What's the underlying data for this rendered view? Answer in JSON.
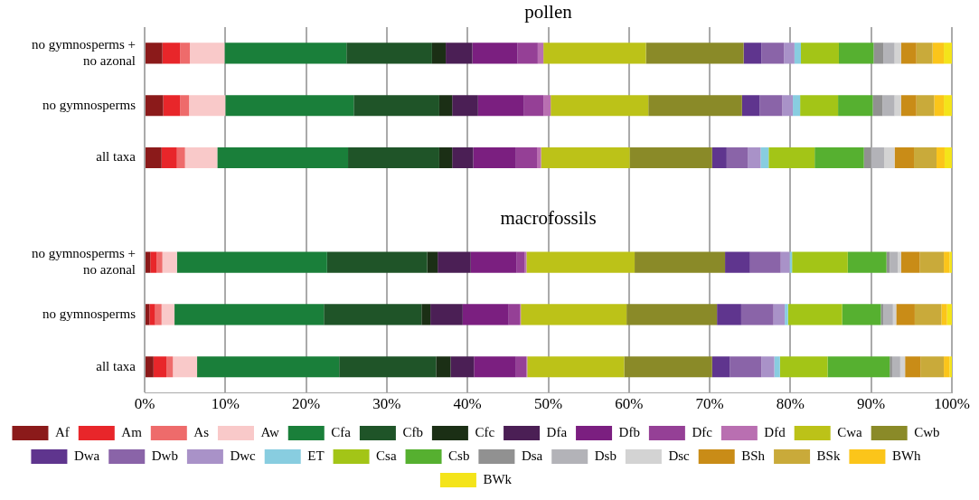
{
  "chart_data": {
    "type": "bar",
    "orientation": "horizontal",
    "stacked": true,
    "title": "pollen",
    "annotations": [
      "macrofossils"
    ],
    "categories": [
      "no gymnosperms + no azonal",
      "no gymnosperms",
      "all taxa",
      null,
      "no gymnosperms + no azonal",
      "no gymnosperms",
      "all taxa"
    ],
    "xlim": [
      0,
      100
    ],
    "xticks": [
      {
        "value": 0,
        "label": "0%"
      },
      {
        "value": 10,
        "label": "10%"
      },
      {
        "value": 20,
        "label": "20%"
      },
      {
        "value": 30,
        "label": "30%"
      },
      {
        "value": 40,
        "label": "40%"
      },
      {
        "value": 50,
        "label": "50%"
      },
      {
        "value": 60,
        "label": "60%"
      },
      {
        "value": 70,
        "label": "70%"
      },
      {
        "value": 80,
        "label": "80%"
      },
      {
        "value": 90,
        "label": "90%"
      },
      {
        "value": 100,
        "label": "100%"
      }
    ],
    "grid": "x",
    "legend": "bottom",
    "series": [
      {
        "name": "Af",
        "color": "#8b1a1a",
        "values": [
          2.2,
          2.3,
          2.1,
          null,
          0.7,
          0.6,
          1.1
        ]
      },
      {
        "name": "Am",
        "color": "#e8262a",
        "values": [
          2.2,
          2.1,
          1.9,
          null,
          0.8,
          0.7,
          1.6
        ]
      },
      {
        "name": "As",
        "color": "#ee6b6b",
        "values": [
          1.2,
          1.1,
          1.0,
          null,
          0.7,
          0.8,
          0.8
        ]
      },
      {
        "name": "Aw",
        "color": "#f9c9c9",
        "values": [
          4.3,
          4.5,
          4.0,
          null,
          1.8,
          1.6,
          3.0
        ]
      },
      {
        "name": "Cfa",
        "color": "#1a7f3a",
        "values": [
          15.1,
          15.9,
          16.2,
          null,
          18.6,
          18.5,
          17.6
        ]
      },
      {
        "name": "Cfb",
        "color": "#1f5428",
        "values": [
          10.6,
          10.6,
          11.3,
          null,
          12.4,
          12.1,
          12.0
        ]
      },
      {
        "name": "Cfc",
        "color": "#1b2f15",
        "values": [
          1.7,
          1.6,
          1.6,
          null,
          1.3,
          1.1,
          1.8
        ]
      },
      {
        "name": "Dfa",
        "color": "#4b1f55",
        "values": [
          3.3,
          3.2,
          2.6,
          null,
          4.1,
          4.0,
          2.9
        ]
      },
      {
        "name": "Dfb",
        "color": "#7b1f80",
        "values": [
          5.6,
          5.7,
          5.3,
          null,
          5.7,
          5.7,
          5.2
        ]
      },
      {
        "name": "Dfc",
        "color": "#954096",
        "values": [
          2.5,
          2.4,
          2.6,
          null,
          1.0,
          1.4,
          1.3
        ]
      },
      {
        "name": "Dfd",
        "color": "#b96fb1",
        "values": [
          0.7,
          0.9,
          0.5,
          null,
          0.2,
          0.1,
          0.1
        ]
      },
      {
        "name": "Cwa",
        "color": "#bcc218",
        "values": [
          12.7,
          12.1,
          11.0,
          null,
          13.4,
          13.1,
          12.0
        ]
      },
      {
        "name": "Cwb",
        "color": "#8a8a28",
        "values": [
          12.1,
          11.6,
          10.2,
          null,
          11.2,
          11.2,
          10.9
        ]
      },
      {
        "name": "Dwa",
        "color": "#5f358e",
        "values": [
          2.2,
          2.2,
          1.8,
          null,
          3.1,
          3.0,
          2.2
        ]
      },
      {
        "name": "Dwb",
        "color": "#8a64a8",
        "values": [
          2.8,
          2.8,
          2.6,
          null,
          3.8,
          4.0,
          3.9
        ]
      },
      {
        "name": "Dwc",
        "color": "#a992c8",
        "values": [
          1.3,
          1.3,
          1.6,
          null,
          1.1,
          1.4,
          1.6
        ]
      },
      {
        "name": "ET",
        "color": "#88cde0",
        "values": [
          0.8,
          0.9,
          1.0,
          null,
          0.3,
          0.4,
          0.7
        ]
      },
      {
        "name": "Csa",
        "color": "#a3c517",
        "values": [
          4.7,
          4.7,
          5.7,
          null,
          6.9,
          6.7,
          5.9
        ]
      },
      {
        "name": "Csb",
        "color": "#56b030",
        "values": [
          4.3,
          4.3,
          6.1,
          null,
          4.8,
          4.8,
          7.7
        ]
      },
      {
        "name": "Dsa",
        "color": "#919191",
        "values": [
          1.2,
          1.2,
          0.9,
          null,
          0.4,
          0.3,
          0.3
        ]
      },
      {
        "name": "Dsb",
        "color": "#b3b3b8",
        "values": [
          1.4,
          1.5,
          1.6,
          null,
          1.0,
          1.2,
          1.0
        ]
      },
      {
        "name": "Dsc",
        "color": "#d3d3d3",
        "values": [
          0.8,
          0.8,
          1.3,
          null,
          0.4,
          0.4,
          0.6
        ]
      },
      {
        "name": "BSh",
        "color": "#c98c17",
        "values": [
          1.9,
          1.9,
          2.4,
          null,
          2.3,
          2.3,
          1.9
        ]
      },
      {
        "name": "BSk",
        "color": "#c9aa3a",
        "values": [
          2.0,
          2.2,
          2.8,
          null,
          3.0,
          3.3,
          2.9
        ]
      },
      {
        "name": "BWh",
        "color": "#fbc51a",
        "values": [
          1.4,
          1.2,
          1.0,
          null,
          0.7,
          0.7,
          0.7
        ]
      },
      {
        "name": "BWk",
        "color": "#f4e41a",
        "values": [
          1.0,
          1.0,
          0.9,
          null,
          0.3,
          0.6,
          0.3
        ]
      }
    ]
  }
}
